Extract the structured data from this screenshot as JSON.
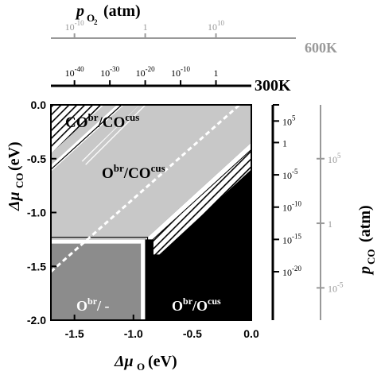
{
  "top_axis": {
    "title_main": "p",
    "title_sub": "O",
    "title_subsub": "2",
    "title_unit": "(atm)",
    "label_600K": "600K",
    "label_300K": "300K",
    "ticks_600K": [
      {
        "mu": -1.5,
        "base": "10",
        "exp": "-10"
      },
      {
        "mu": -0.9,
        "base": "1",
        "exp": ""
      },
      {
        "mu": -0.3,
        "base": "10",
        "exp": "10"
      }
    ],
    "ticks_300K": [
      {
        "mu": -1.5,
        "base": "10",
        "exp": "-40"
      },
      {
        "mu": -1.2,
        "base": "10",
        "exp": "-30"
      },
      {
        "mu": -0.9,
        "base": "10",
        "exp": "-20"
      },
      {
        "mu": -0.6,
        "base": "10",
        "exp": "-10"
      },
      {
        "mu": -0.3,
        "base": "1",
        "exp": ""
      }
    ]
  },
  "right_axis": {
    "title_main": "p",
    "title_sub": "CO",
    "title_unit": "(atm)",
    "ticks_300K": [
      {
        "mu": 0.0,
        "base": "",
        "exp": ""
      },
      {
        "mu": -0.15,
        "base": "10",
        "exp": "5"
      },
      {
        "mu": -0.35,
        "base": "1",
        "exp": ""
      },
      {
        "mu": -0.65,
        "base": "10",
        "exp": "-5"
      },
      {
        "mu": -0.95,
        "base": "10",
        "exp": "-10"
      },
      {
        "mu": -1.25,
        "base": "10",
        "exp": "-15"
      },
      {
        "mu": -1.55,
        "base": "10",
        "exp": "-20"
      }
    ],
    "ticks_600K": [
      {
        "mu": -0.5,
        "base": "10",
        "exp": "5"
      },
      {
        "mu": -1.1,
        "base": "1",
        "exp": ""
      },
      {
        "mu": -1.7,
        "base": "10",
        "exp": "-5"
      }
    ]
  },
  "chart_data": {
    "type": "heatmap",
    "xlabel": "Δμ",
    "xlabel_sub": "O",
    "xlabel_unit": "(eV)",
    "ylabel": "Δμ",
    "ylabel_sub": "CO",
    "ylabel_unit": "(eV)",
    "xlim": [
      -1.7,
      0.0
    ],
    "ylim": [
      -2.0,
      0.0
    ],
    "x_ticks": [
      -1.5,
      -1.0,
      -0.5,
      0.0
    ],
    "x_tick_labels": [
      "-1.5",
      "-1.0",
      "-0.5",
      "0.0"
    ],
    "y_ticks": [
      0.0,
      -0.5,
      -1.0,
      -1.5,
      -2.0
    ],
    "y_tick_labels": [
      "0.0",
      "-0.5",
      "-1.0",
      "-1.5",
      "-2.0"
    ],
    "regions": [
      {
        "name": "COcus_br",
        "label_main": "CO",
        "label_sup1": "br",
        "label_sep": "/CO",
        "label_sup2": "cus",
        "color": "#c8c8c8"
      },
      {
        "name": "Obr_COcus",
        "label_main": "O",
        "label_sup1": "br",
        "label_sep": "/CO",
        "label_sup2": "cus",
        "color": "#c8c8c8"
      },
      {
        "name": "Obr_empty",
        "label_main": "O",
        "label_sup1": "br",
        "label_sep": "/ -",
        "label_sup2": "",
        "color": "#8c8c8c"
      },
      {
        "name": "Obr_Ocus",
        "label_main": "O",
        "label_sup1": "br",
        "label_sep": "/O",
        "label_sup2": "cus",
        "color": "#000000"
      }
    ],
    "boundaries": {
      "co_br_line": [
        [
          -1.7,
          -0.6
        ],
        [
          -1.1,
          0.0
        ]
      ],
      "co_ocus_line": [
        [
          -0.9,
          -1.25
        ],
        [
          0.0,
          -0.35
        ]
      ],
      "horizontal": [
        [
          -1.7,
          -1.25
        ],
        [
          -0.9,
          -1.25
        ]
      ],
      "vertical": [
        [
          -0.9,
          -1.25
        ],
        [
          -0.9,
          -2.0
        ]
      ],
      "dashed_line": [
        [
          -1.7,
          -1.55
        ],
        [
          -0.1,
          0.0
        ]
      ]
    }
  }
}
